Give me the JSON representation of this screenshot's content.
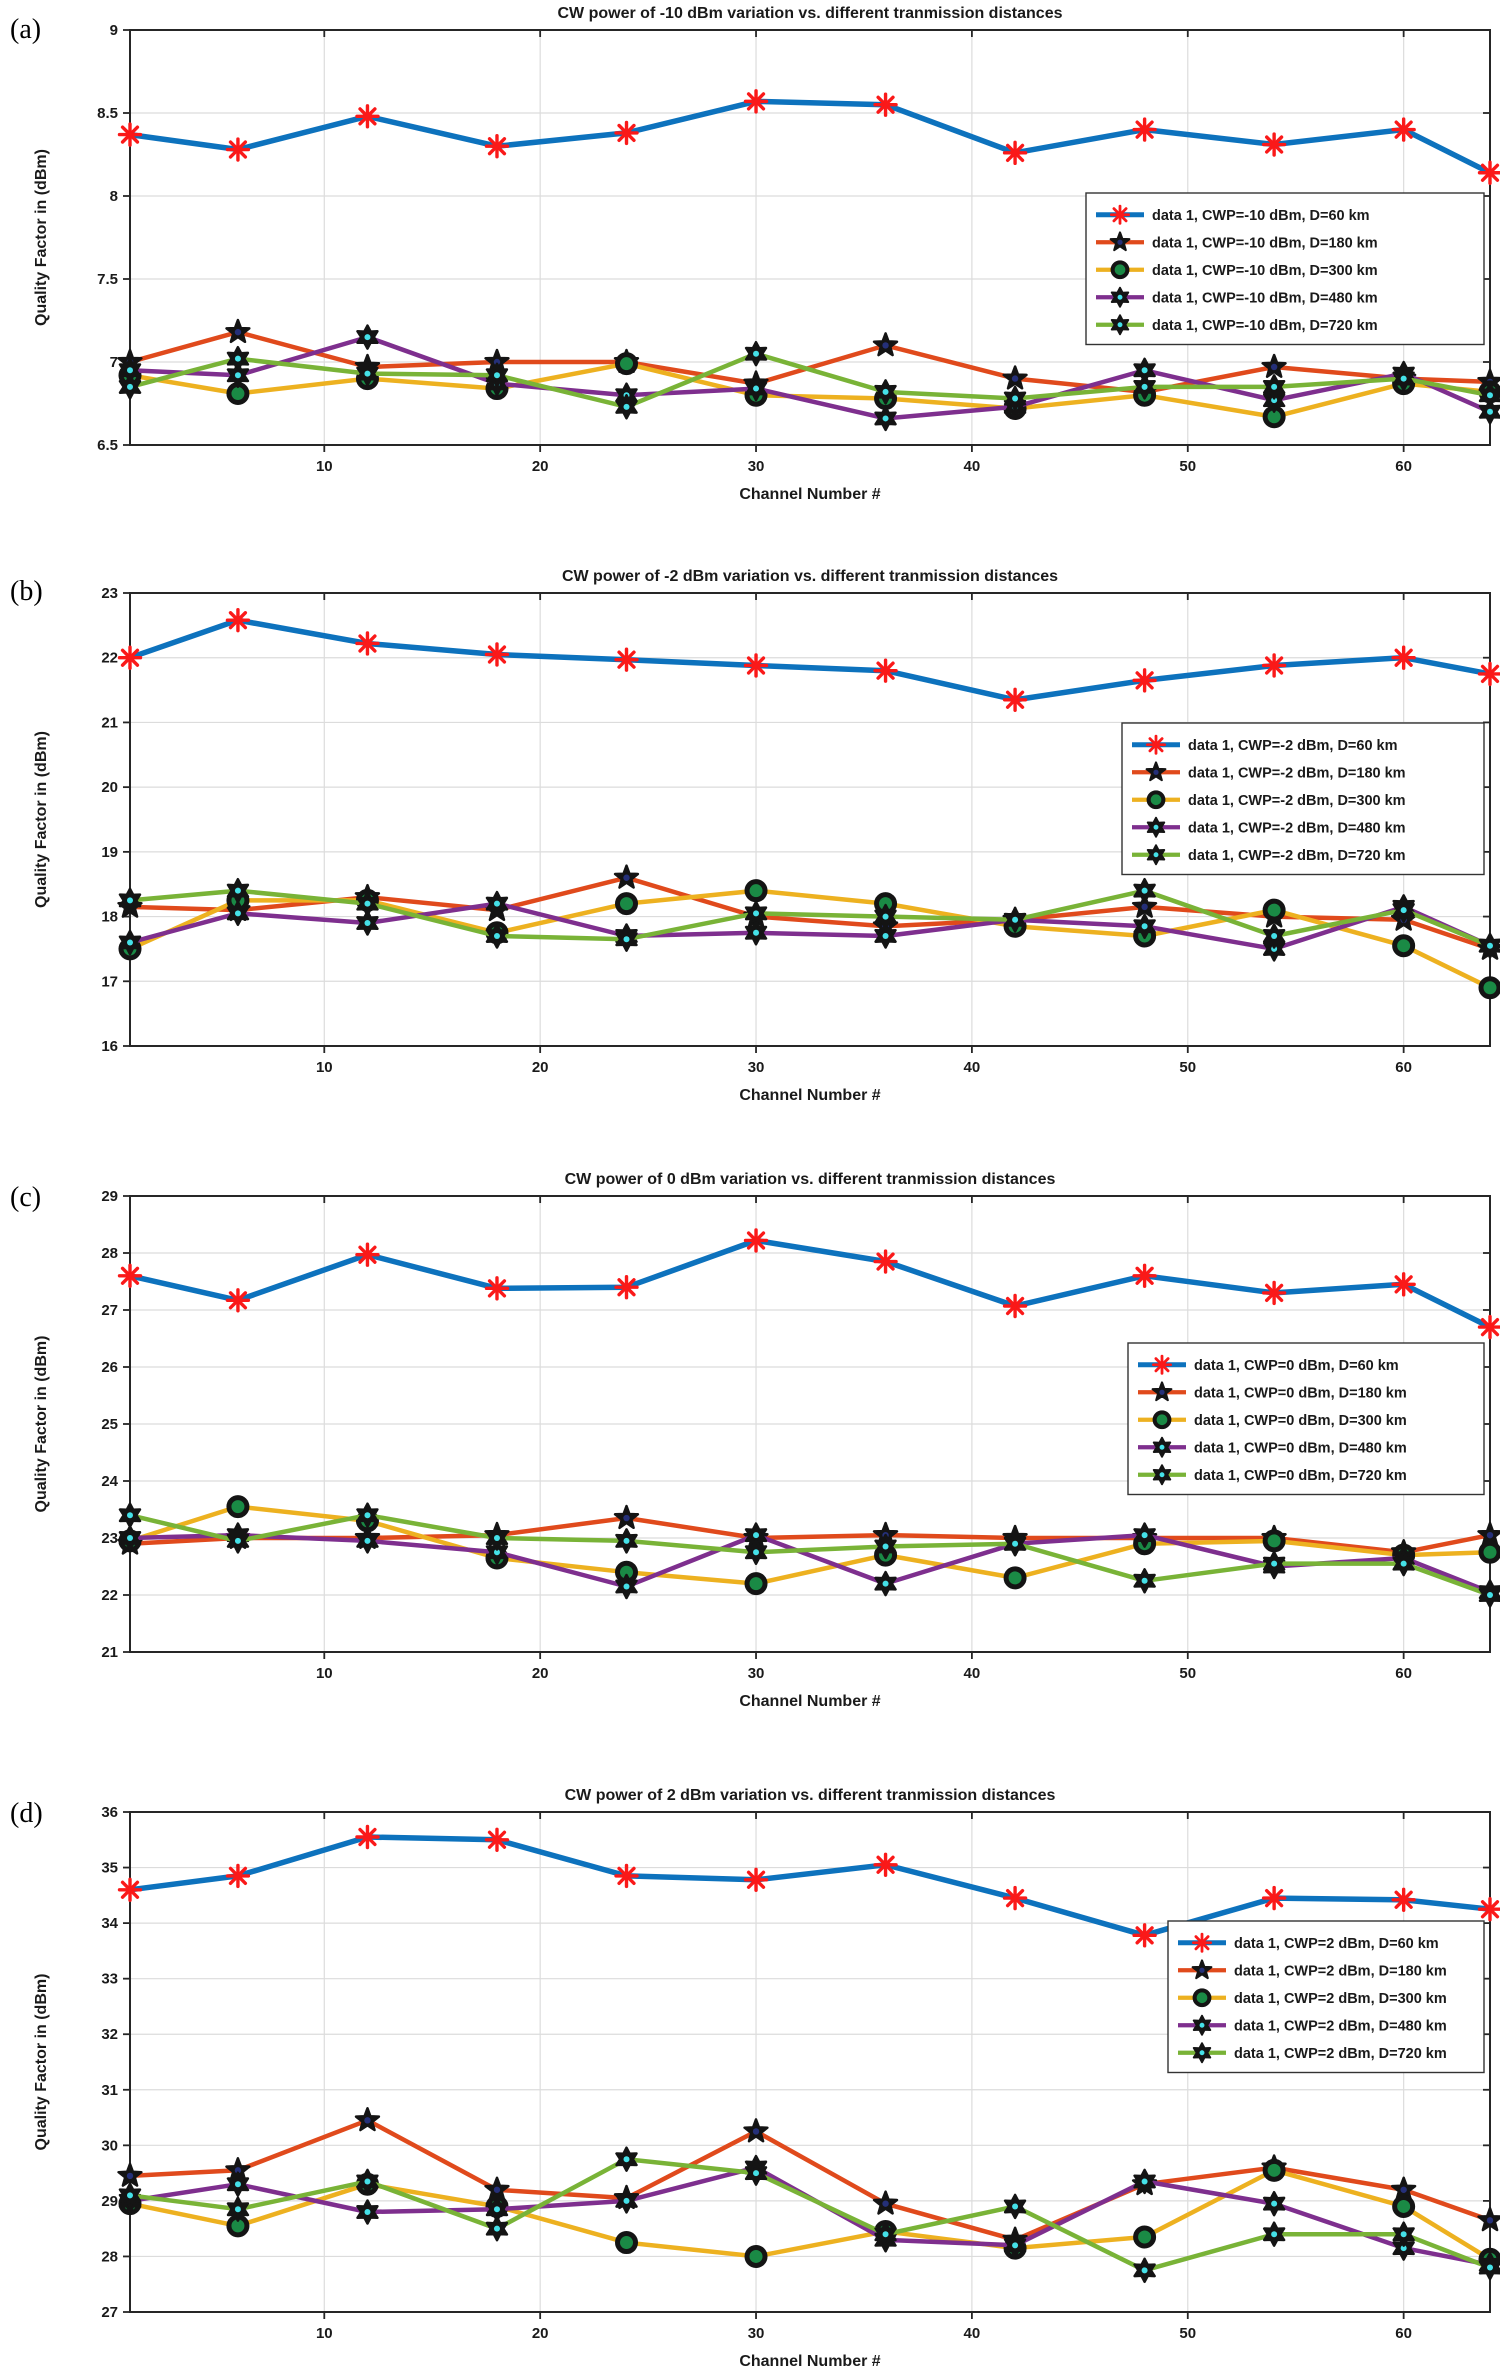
{
  "colors": {
    "blue": "#0d72bd",
    "orange": "#e04a1c",
    "yellow": "#edb120",
    "purple": "#7e2f8e",
    "green": "#79b337",
    "marker_red": "#fa1919",
    "marker_black": "#141414",
    "marker_navy": "#253079",
    "marker_cyan": "#45e1e8",
    "marker_green_fill": "#1a8a45",
    "grid": "#dcdcdc",
    "axis": "#262626"
  },
  "chart_data": {
    "type": "line",
    "xlabel": "Channel Number #",
    "ylabel": "Quality Factor in (dBm)",
    "channels": [
      1,
      6,
      12,
      18,
      24,
      30,
      36,
      42,
      48,
      54,
      60,
      64
    ],
    "xticks": [
      10,
      20,
      30,
      40,
      50,
      60
    ],
    "panels": [
      {
        "letter": "(a)",
        "title": "CW power of -10 dBm variation vs. different tranmission distances",
        "ylim": [
          6.5,
          9
        ],
        "yticks": [
          6.5,
          7,
          7.5,
          8,
          8.5,
          9
        ],
        "series": [
          {
            "name": "data 1, CWP=-10 dBm, D=60 km",
            "color": "blue",
            "marker": "asterisk",
            "values": [
              8.37,
              8.28,
              8.48,
              8.3,
              8.38,
              8.57,
              8.55,
              8.26,
              8.4,
              8.31,
              8.4,
              8.14
            ]
          },
          {
            "name": "data 1, CWP=-10 dBm, D=180 km",
            "color": "orange",
            "marker": "pentagram",
            "values": [
              7.0,
              7.18,
              6.97,
              7.0,
              7.0,
              6.87,
              7.1,
              6.9,
              6.82,
              6.97,
              6.9,
              6.88
            ]
          },
          {
            "name": "data 1, CWP=-10 dBm, D=300 km",
            "color": "yellow",
            "marker": "circle",
            "values": [
              6.92,
              6.81,
              6.9,
              6.84,
              6.99,
              6.8,
              6.78,
              6.72,
              6.8,
              6.67,
              6.87,
              6.82
            ]
          },
          {
            "name": "data 1, CWP=-10 dBm, D=480 km",
            "color": "purple",
            "marker": "hexagram",
            "values": [
              6.95,
              6.92,
              7.15,
              6.87,
              6.8,
              6.84,
              6.66,
              6.73,
              6.95,
              6.77,
              6.93,
              6.7
            ]
          },
          {
            "name": "data 1, CWP=-10 dBm, D=720 km",
            "color": "green",
            "marker": "hexagram",
            "values": [
              6.85,
              7.02,
              6.93,
              6.92,
              6.73,
              7.05,
              6.82,
              6.78,
              6.85,
              6.85,
              6.9,
              6.8
            ]
          }
        ]
      },
      {
        "letter": "(b)",
        "title": "CW power of -2 dBm variation vs. different tranmission distances",
        "ylim": [
          16,
          23
        ],
        "yticks": [
          16,
          17,
          18,
          19,
          20,
          21,
          22,
          23
        ],
        "series": [
          {
            "name": "data 1, CWP=-2 dBm, D=60 km",
            "color": "blue",
            "marker": "asterisk",
            "values": [
              22.0,
              22.58,
              22.22,
              22.05,
              21.97,
              21.88,
              21.8,
              21.35,
              21.65,
              21.88,
              22.0,
              21.75
            ]
          },
          {
            "name": "data 1, CWP=-2 dBm, D=180 km",
            "color": "orange",
            "marker": "pentagram",
            "values": [
              18.15,
              18.1,
              18.3,
              18.1,
              18.6,
              18.0,
              17.85,
              17.95,
              18.15,
              18.0,
              17.95,
              17.5
            ]
          },
          {
            "name": "data 1, CWP=-2 dBm, D=300 km",
            "color": "yellow",
            "marker": "circle",
            "values": [
              17.5,
              18.25,
              18.25,
              17.75,
              18.2,
              18.4,
              18.2,
              17.85,
              17.7,
              18.1,
              17.55,
              16.9
            ]
          },
          {
            "name": "data 1, CWP=-2 dBm, D=480 km",
            "color": "purple",
            "marker": "hexagram",
            "values": [
              17.6,
              18.05,
              17.9,
              18.2,
              17.7,
              17.75,
              17.7,
              17.95,
              17.85,
              17.5,
              18.15,
              17.55
            ]
          },
          {
            "name": "data 1, CWP=-2 dBm, D=720 km",
            "color": "green",
            "marker": "hexagram",
            "values": [
              18.25,
              18.4,
              18.2,
              17.7,
              17.65,
              18.05,
              18.0,
              17.95,
              18.4,
              17.7,
              18.1,
              17.55
            ]
          }
        ]
      },
      {
        "letter": "(c)",
        "title": "CW power of 0 dBm variation vs. different tranmission distances",
        "ylim": [
          21,
          29
        ],
        "yticks": [
          21,
          22,
          23,
          24,
          25,
          26,
          27,
          28,
          29
        ],
        "series": [
          {
            "name": "data 1, CWP=0 dBm, D=60 km",
            "color": "blue",
            "marker": "asterisk",
            "values": [
              27.6,
              27.17,
              27.97,
              27.38,
              27.4,
              28.22,
              27.85,
              27.07,
              27.6,
              27.3,
              27.45,
              26.7
            ]
          },
          {
            "name": "data 1, CWP=0 dBm, D=180 km",
            "color": "orange",
            "marker": "pentagram",
            "values": [
              22.9,
              23.0,
              23.0,
              23.05,
              23.35,
              23.0,
              23.05,
              23.0,
              23.0,
              23.0,
              22.75,
              23.05
            ]
          },
          {
            "name": "data 1, CWP=0 dBm, D=300 km",
            "color": "yellow",
            "marker": "circle",
            "values": [
              22.95,
              23.55,
              23.3,
              22.65,
              22.4,
              22.2,
              22.7,
              22.3,
              22.9,
              22.95,
              22.7,
              22.75
            ]
          },
          {
            "name": "data 1, CWP=0 dBm, D=480 km",
            "color": "purple",
            "marker": "hexagram",
            "values": [
              23.0,
              23.05,
              22.95,
              22.75,
              22.15,
              23.05,
              22.2,
              22.9,
              23.05,
              22.5,
              22.65,
              22.05
            ]
          },
          {
            "name": "data 1, CWP=0 dBm, D=720 km",
            "color": "green",
            "marker": "hexagram",
            "values": [
              23.4,
              22.95,
              23.4,
              23.0,
              22.95,
              22.75,
              22.85,
              22.9,
              22.25,
              22.55,
              22.55,
              22.0
            ]
          }
        ]
      },
      {
        "letter": "(d)",
        "title": "CW power of 2 dBm variation vs. different tranmission distances",
        "ylim": [
          27,
          36
        ],
        "yticks": [
          27,
          28,
          29,
          30,
          31,
          32,
          33,
          34,
          35,
          36
        ],
        "series": [
          {
            "name": "data 1, CWP=2 dBm, D=60 km",
            "color": "blue",
            "marker": "asterisk",
            "values": [
              34.6,
              34.85,
              35.55,
              35.5,
              34.85,
              34.78,
              35.05,
              34.45,
              33.78,
              34.45,
              34.42,
              34.25
            ]
          },
          {
            "name": "data 1, CWP=2 dBm, D=180 km",
            "color": "orange",
            "marker": "pentagram",
            "values": [
              29.45,
              29.55,
              30.45,
              29.2,
              29.05,
              30.25,
              28.95,
              28.3,
              29.3,
              29.6,
              29.2,
              28.65
            ]
          },
          {
            "name": "data 1, CWP=2 dBm, D=300 km",
            "color": "yellow",
            "marker": "circle",
            "values": [
              28.95,
              28.55,
              29.3,
              28.9,
              28.25,
              28.0,
              28.45,
              28.15,
              28.35,
              29.55,
              28.9,
              27.95
            ]
          },
          {
            "name": "data 1, CWP=2 dBm, D=480 km",
            "color": "purple",
            "marker": "hexagram",
            "values": [
              29.0,
              29.3,
              28.8,
              28.85,
              29.0,
              29.6,
              28.3,
              28.2,
              29.35,
              28.95,
              28.15,
              27.85
            ]
          },
          {
            "name": "data 1, CWP=2 dBm, D=720 km",
            "color": "green",
            "marker": "hexagram",
            "values": [
              29.1,
              28.85,
              29.35,
              28.5,
              29.75,
              29.5,
              28.4,
              28.9,
              27.75,
              28.4,
              28.4,
              27.8
            ]
          }
        ]
      }
    ]
  }
}
